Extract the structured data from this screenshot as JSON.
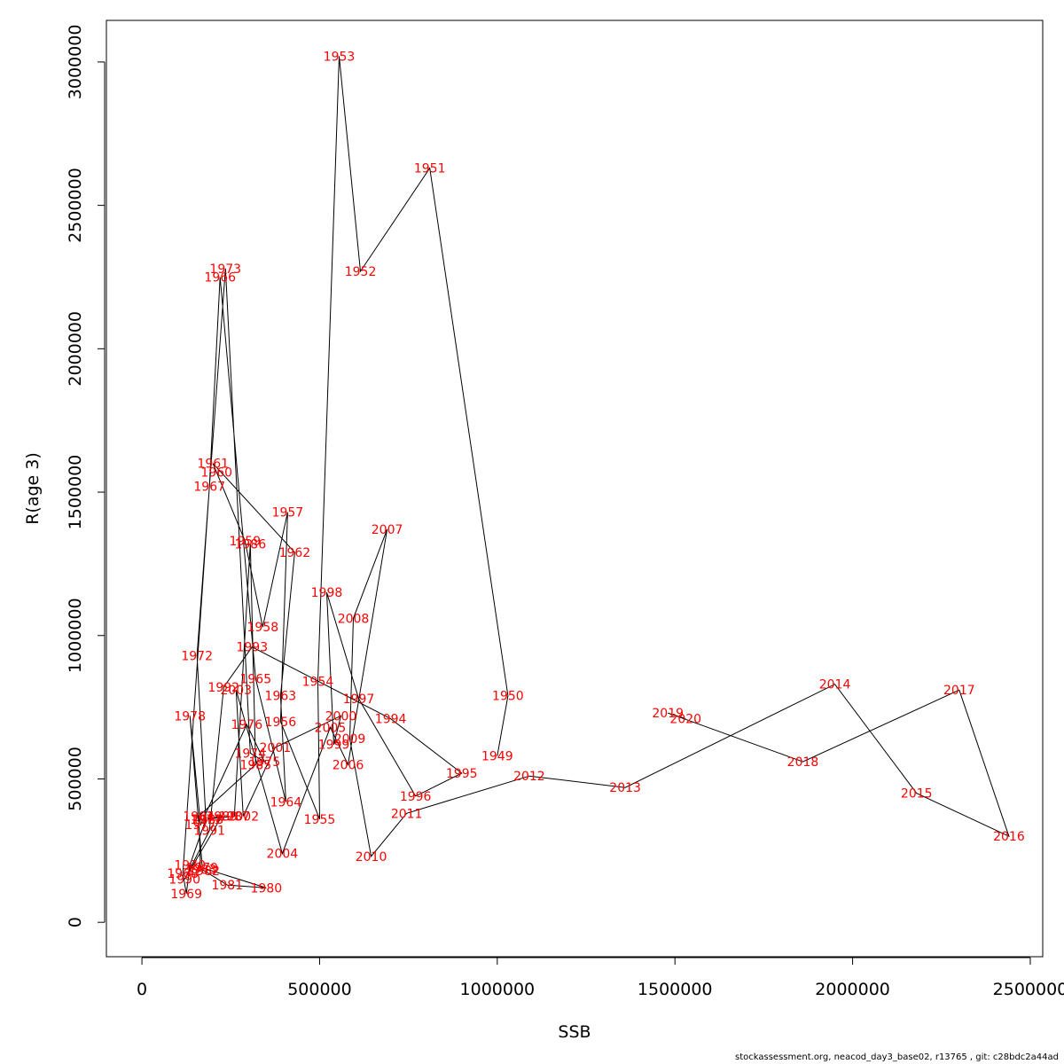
{
  "chart_data": {
    "type": "line",
    "xlabel": "SSB",
    "ylabel": "R(age 3)",
    "xlim": [
      -100000,
      2535000
    ],
    "ylim": [
      -120000,
      3145000
    ],
    "x_ticks": [
      0,
      500000,
      1000000,
      1500000,
      2000000,
      2500000
    ],
    "x_tick_labels": [
      "0",
      "500000",
      "1000000",
      "1500000",
      "2000000",
      "2500000"
    ],
    "y_ticks": [
      0,
      500000,
      1000000,
      1500000,
      2000000,
      2500000,
      3000000
    ],
    "y_tick_labels": [
      "0",
      "500000",
      "1000000",
      "1500000",
      "2000000",
      "2500000",
      "3000000"
    ],
    "grid": false,
    "points": [
      {
        "year": "1949",
        "x": 1000000,
        "y": 580000
      },
      {
        "year": "1950",
        "x": 1030000,
        "y": 790000
      },
      {
        "year": "1951",
        "x": 810000,
        "y": 2630000
      },
      {
        "year": "1952",
        "x": 615000,
        "y": 2270000
      },
      {
        "year": "1953",
        "x": 555000,
        "y": 3020000
      },
      {
        "year": "1954",
        "x": 495000,
        "y": 840000
      },
      {
        "year": "1955",
        "x": 500000,
        "y": 360000
      },
      {
        "year": "1956",
        "x": 390000,
        "y": 700000
      },
      {
        "year": "1957",
        "x": 410000,
        "y": 1430000
      },
      {
        "year": "1958",
        "x": 340000,
        "y": 1030000
      },
      {
        "year": "1959",
        "x": 290000,
        "y": 1330000
      },
      {
        "year": "1960",
        "x": 210000,
        "y": 1570000
      },
      {
        "year": "1961",
        "x": 200000,
        "y": 1600000
      },
      {
        "year": "1962",
        "x": 430000,
        "y": 1290000
      },
      {
        "year": "1963",
        "x": 390000,
        "y": 790000
      },
      {
        "year": "1964",
        "x": 405000,
        "y": 420000
      },
      {
        "year": "1965",
        "x": 320000,
        "y": 850000
      },
      {
        "year": "1966",
        "x": 220000,
        "y": 2250000
      },
      {
        "year": "1967",
        "x": 190000,
        "y": 1520000
      },
      {
        "year": "1968",
        "x": 115000,
        "y": 170000
      },
      {
        "year": "1969",
        "x": 125000,
        "y": 100000
      },
      {
        "year": "1970",
        "x": 135000,
        "y": 200000
      },
      {
        "year": "1971",
        "x": 180000,
        "y": 360000
      },
      {
        "year": "1972",
        "x": 155000,
        "y": 930000
      },
      {
        "year": "1973",
        "x": 235000,
        "y": 2280000
      },
      {
        "year": "1974",
        "x": 305000,
        "y": 590000
      },
      {
        "year": "1975",
        "x": 345000,
        "y": 560000
      },
      {
        "year": "1976",
        "x": 295000,
        "y": 690000
      },
      {
        "year": "1977",
        "x": 165000,
        "y": 340000
      },
      {
        "year": "1978",
        "x": 135000,
        "y": 720000
      },
      {
        "year": "1979",
        "x": 170000,
        "y": 190000
      },
      {
        "year": "1980",
        "x": 350000,
        "y": 120000
      },
      {
        "year": "1981",
        "x": 240000,
        "y": 130000
      },
      {
        "year": "1982",
        "x": 175000,
        "y": 180000
      },
      {
        "year": "1983",
        "x": 165000,
        "y": 185000
      },
      {
        "year": "1984",
        "x": 160000,
        "y": 370000
      },
      {
        "year": "1985",
        "x": 320000,
        "y": 550000
      },
      {
        "year": "1986",
        "x": 305000,
        "y": 1320000
      },
      {
        "year": "1987",
        "x": 260000,
        "y": 370000
      },
      {
        "year": "1988",
        "x": 185000,
        "y": 360000
      },
      {
        "year": "1989",
        "x": 225000,
        "y": 370000
      },
      {
        "year": "1990",
        "x": 120000,
        "y": 150000
      },
      {
        "year": "1991",
        "x": 190000,
        "y": 320000
      },
      {
        "year": "1992",
        "x": 230000,
        "y": 820000
      },
      {
        "year": "1993",
        "x": 310000,
        "y": 960000
      },
      {
        "year": "1994",
        "x": 700000,
        "y": 710000
      },
      {
        "year": "1995",
        "x": 900000,
        "y": 520000
      },
      {
        "year": "1996",
        "x": 770000,
        "y": 440000
      },
      {
        "year": "1997",
        "x": 610000,
        "y": 780000
      },
      {
        "year": "1998",
        "x": 520000,
        "y": 1150000
      },
      {
        "year": "1999",
        "x": 540000,
        "y": 620000
      },
      {
        "year": "2000",
        "x": 560000,
        "y": 720000
      },
      {
        "year": "2001",
        "x": 375000,
        "y": 610000
      },
      {
        "year": "2002",
        "x": 285000,
        "y": 370000
      },
      {
        "year": "2003",
        "x": 265000,
        "y": 810000
      },
      {
        "year": "2004",
        "x": 395000,
        "y": 240000
      },
      {
        "year": "2005",
        "x": 530000,
        "y": 680000
      },
      {
        "year": "2006",
        "x": 580000,
        "y": 550000
      },
      {
        "year": "2007",
        "x": 690000,
        "y": 1370000
      },
      {
        "year": "2008",
        "x": 595000,
        "y": 1060000
      },
      {
        "year": "2009",
        "x": 585000,
        "y": 640000
      },
      {
        "year": "2010",
        "x": 645000,
        "y": 230000
      },
      {
        "year": "2011",
        "x": 745000,
        "y": 380000
      },
      {
        "year": "2012",
        "x": 1090000,
        "y": 510000
      },
      {
        "year": "2013",
        "x": 1360000,
        "y": 470000
      },
      {
        "year": "2014",
        "x": 1950000,
        "y": 830000
      },
      {
        "year": "2015",
        "x": 2180000,
        "y": 450000
      },
      {
        "year": "2016",
        "x": 2440000,
        "y": 300000
      },
      {
        "year": "2017",
        "x": 2300000,
        "y": 810000
      },
      {
        "year": "2018",
        "x": 1860000,
        "y": 560000
      },
      {
        "year": "2019",
        "x": 1480000,
        "y": 730000
      },
      {
        "year": "2020",
        "x": 1530000,
        "y": 710000
      }
    ]
  },
  "footer": "stockassessment.org, neacod_day3_base02, r13765 , git: c28bdc2a44ad"
}
